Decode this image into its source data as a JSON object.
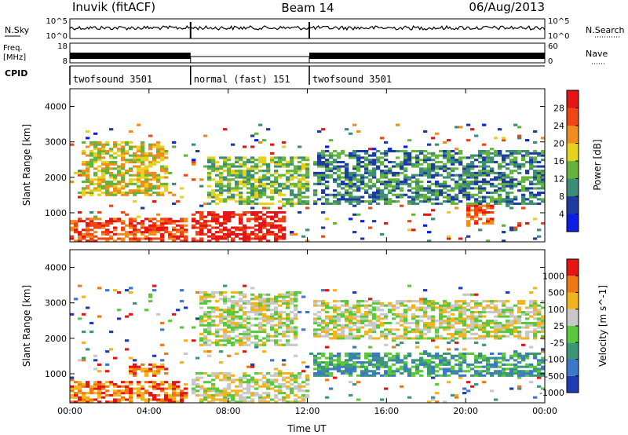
{
  "header": {
    "station": "Inuvik (fitACF)",
    "beam": "Beam 14",
    "date": "06/Aug/2013"
  },
  "status_panels": {
    "nsky_label": "N.Sky",
    "nsearch_label": "N.Search",
    "freq_label_line1": "Freq.",
    "freq_label_line2": "[MHz]",
    "nave_label": "Nave",
    "cpid_label": "CPID",
    "noise_ticks_left": [
      "10^5",
      "10^0"
    ],
    "noise_ticks_right": [
      "10^5",
      "10^0"
    ],
    "freq_ticks_left": [
      "18",
      "8"
    ],
    "nave_ticks_right": [
      "60",
      "0"
    ],
    "cpid_modes": [
      {
        "label": "twofsound 3501",
        "start_hour": 0,
        "end_hour": 6.1
      },
      {
        "label": "normal (fast) 151",
        "start_hour": 6.1,
        "end_hour": 12.1
      },
      {
        "label": "twofsound 3501",
        "start_hour": 12.1,
        "end_hour": 24
      }
    ]
  },
  "chart_data": [
    {
      "type": "heatmap",
      "title": "",
      "xlabel": "Time UT",
      "ylabel": "Slant Range [km]",
      "x_ticks": [
        "00:00",
        "04:00",
        "08:00",
        "12:00",
        "16:00",
        "20:00",
        "00:00"
      ],
      "y_ticks": [
        "1000",
        "2000",
        "3000",
        "4000"
      ],
      "xlim_hours": [
        0,
        24
      ],
      "ylim_km": [
        180,
        4500
      ],
      "colorbar": {
        "label": "Power [dB]",
        "ticks": [
          "4",
          "8",
          "12",
          "16",
          "20",
          "24",
          "28"
        ],
        "colors": [
          "#0a1ee6",
          "#1e3ca0",
          "#3c8c78",
          "#64b43c",
          "#e6d21e",
          "#f08c1e",
          "#f04614",
          "#e61414"
        ]
      },
      "regions": [
        {
          "t0": 0.0,
          "t1": 6.0,
          "r0": 200,
          "r1": 850,
          "level": 6
        },
        {
          "t0": 6.2,
          "t1": 11.0,
          "r0": 200,
          "r1": 1050,
          "level": 7
        },
        {
          "t0": 20.0,
          "t1": 21.5,
          "r0": 700,
          "r1": 1300,
          "level": 6
        },
        {
          "t0": 0.5,
          "t1": 5.0,
          "r0": 1500,
          "r1": 3000,
          "level": 4
        },
        {
          "t0": 7.0,
          "t1": 12.0,
          "r0": 1200,
          "r1": 2600,
          "level": 3
        },
        {
          "t0": 12.2,
          "t1": 24.0,
          "r0": 1200,
          "r1": 2800,
          "level": 2
        }
      ]
    },
    {
      "type": "heatmap",
      "title": "",
      "xlabel": "Time UT",
      "ylabel": "Slant Range [km]",
      "x_ticks": [
        "00:00",
        "04:00",
        "08:00",
        "12:00",
        "16:00",
        "20:00",
        "00:00"
      ],
      "y_ticks": [
        "1000",
        "2000",
        "3000",
        "4000"
      ],
      "xlim_hours": [
        0,
        24
      ],
      "ylim_km": [
        180,
        4500
      ],
      "colorbar": {
        "label": "Velocity [m s^-1]",
        "ticks": [
          "1000",
          "500",
          "100",
          "25",
          "-25",
          "-100",
          "-500",
          "-1000"
        ],
        "colors": [
          "#1e3cb4",
          "#3c78c8",
          "#3c9678",
          "#5ac83c",
          "#c8c8c8",
          "#f0b41e",
          "#f07814",
          "#e61414"
        ]
      },
      "regions": [
        {
          "t0": 0.0,
          "t1": 6.0,
          "r0": 200,
          "r1": 800,
          "level": 6
        },
        {
          "t0": 6.2,
          "t1": 12.0,
          "r0": 200,
          "r1": 1050,
          "level": 4
        },
        {
          "t0": 6.5,
          "t1": 11.5,
          "r0": 1800,
          "r1": 3300,
          "level": 4
        },
        {
          "t0": 12.2,
          "t1": 24.0,
          "r0": 2000,
          "r1": 3100,
          "level": 4
        },
        {
          "t0": 12.2,
          "t1": 24.0,
          "r0": 900,
          "r1": 1600,
          "level": 2
        },
        {
          "t0": 3.0,
          "t1": 5.0,
          "r0": 900,
          "r1": 1300,
          "level": 6
        }
      ]
    }
  ]
}
